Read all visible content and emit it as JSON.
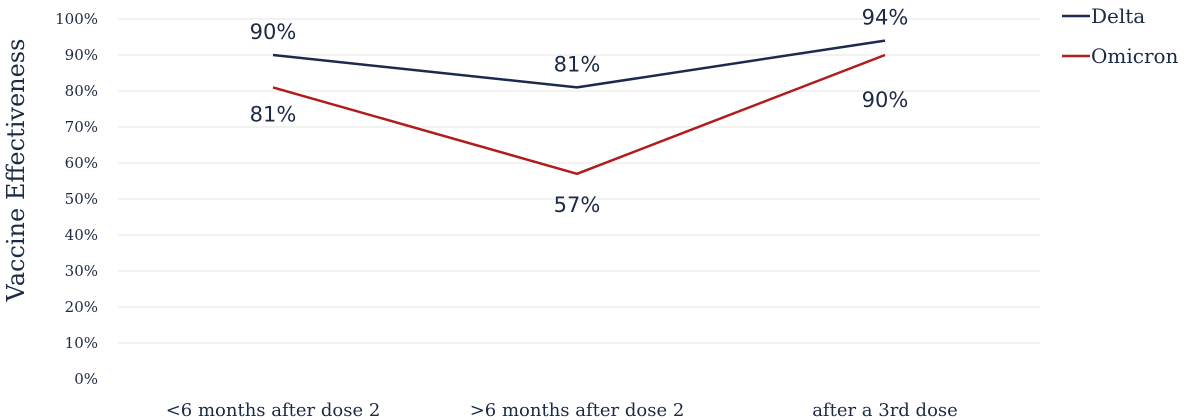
{
  "chart_data": {
    "type": "line",
    "categories": [
      "<6 months after dose 2",
      ">6 months after dose 2",
      "after a 3rd dose"
    ],
    "series": [
      {
        "name": "Delta",
        "values": [
          90,
          81,
          94
        ],
        "labels": [
          "90%",
          "81%",
          "94%"
        ],
        "color": "#1c2a4f"
      },
      {
        "name": "Omicron",
        "values": [
          81,
          57,
          90
        ],
        "labels": [
          "81%",
          "57%",
          "90%"
        ],
        "color": "#b01c1c"
      }
    ],
    "ylabel": "Vaccine Effectiveness",
    "ylim": [
      0,
      100
    ],
    "yticks": [
      0,
      10,
      20,
      30,
      40,
      50,
      60,
      70,
      80,
      90,
      100
    ],
    "ytick_labels": [
      "0%",
      "10%",
      "20%",
      "30%",
      "40%",
      "50%",
      "60%",
      "70%",
      "80%",
      "90%",
      "100%"
    ],
    "grid": true,
    "legend_position": "top-right"
  }
}
